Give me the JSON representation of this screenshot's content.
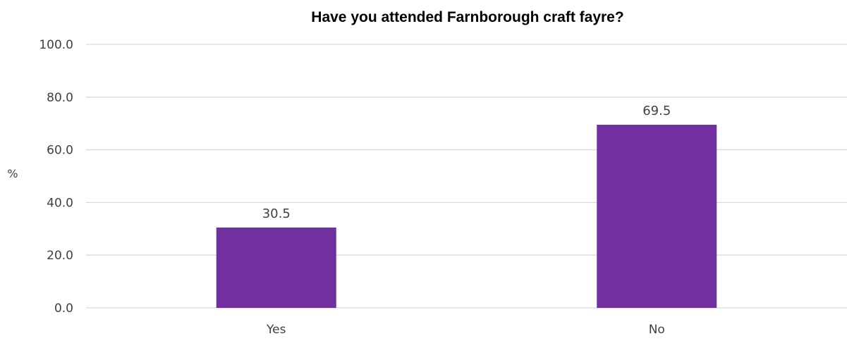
{
  "chart_data": {
    "type": "bar",
    "title": "Have you attended Farnborough craft fayre?",
    "xlabel": "",
    "ylabel": "%",
    "categories": [
      "Yes",
      "No"
    ],
    "values": [
      30.5,
      69.5
    ],
    "value_labels": [
      "30.5",
      "69.5"
    ],
    "ylim": [
      0,
      100
    ],
    "yticks": [
      "0.0",
      "20.0",
      "40.0",
      "60.0",
      "80.0",
      "100.0"
    ],
    "ytick_values": [
      0,
      20,
      40,
      60,
      80,
      100
    ],
    "grid": true,
    "legend": "none",
    "bar_color": "#7030a0"
  }
}
